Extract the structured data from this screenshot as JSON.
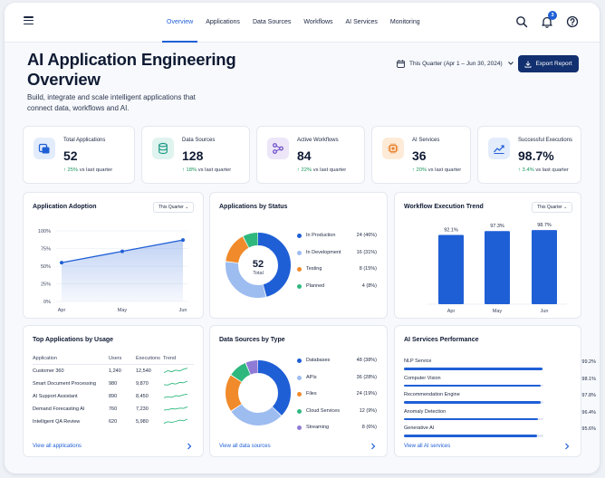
{
  "nav": {
    "tabs": [
      {
        "label": "Overview",
        "active": true
      },
      {
        "label": "Applications",
        "active": false
      },
      {
        "label": "Data Sources",
        "active": false
      },
      {
        "label": "Workflows",
        "active": false
      },
      {
        "label": "AI Services",
        "active": false
      },
      {
        "label": "Monitoring",
        "active": false
      }
    ],
    "notification_count": "3",
    "icons": [
      "menu-icon",
      "search-icon",
      "bell-icon",
      "help-icon"
    ]
  },
  "header": {
    "title": "AI Application Engineering Overview",
    "subtitle": "Build, integrate and scale intelligent applications that connect data, workflows and AI.",
    "date_range": "This Quarter (Apr 1 – Jun 30, 2024)",
    "export_label": "Export Report"
  },
  "kpis": [
    {
      "label": "Total Applications",
      "value": "52",
      "delta": "25%",
      "delta_suffix": "vs last quarter",
      "icon": "applications-icon",
      "icon_bg": "#e3ecfb",
      "icon_color": "#1f5fd6"
    },
    {
      "label": "Data Sources",
      "value": "128",
      "delta": "18%",
      "delta_suffix": "vs last quarter",
      "icon": "database-icon",
      "icon_bg": "#dff3ef",
      "icon_color": "#1e9a84"
    },
    {
      "label": "Active Workflows",
      "value": "84",
      "delta": "22%",
      "delta_suffix": "vs last quarter",
      "icon": "workflow-icon",
      "icon_bg": "#ece6f8",
      "icon_color": "#6b4bc8"
    },
    {
      "label": "AI Services",
      "value": "36",
      "delta": "20%",
      "delta_suffix": "vs last quarter",
      "icon": "chip-icon",
      "icon_bg": "#fdebd8",
      "icon_color": "#e8822d"
    },
    {
      "label": "Successful Executions",
      "value": "98.7%",
      "delta": "3.4%",
      "delta_suffix": "vs last quarter",
      "icon": "trend-icon",
      "icon_bg": "#e3ecfb",
      "icon_color": "#1f5fd6"
    }
  ],
  "adoption": {
    "title": "Application Adoption",
    "filter": "This Quarter"
  },
  "status": {
    "title": "Applications by Status",
    "center_value": "52",
    "center_label": "Total"
  },
  "trend": {
    "title": "Workflow Execution Trend",
    "filter": "This Quarter"
  },
  "top_apps": {
    "title": "Top Applications by Usage",
    "columns": [
      "Application",
      "Users",
      "Executions",
      "Trend"
    ],
    "rows": [
      {
        "app": "Customer 360",
        "users": "1,240",
        "executions": "12,540",
        "spark": [
          0.2,
          0.5,
          0.35,
          0.6,
          0.45,
          0.75,
          0.9
        ]
      },
      {
        "app": "Smart Document Processing",
        "users": "980",
        "executions": "9,870",
        "spark": [
          0.3,
          0.25,
          0.5,
          0.4,
          0.65,
          0.6,
          0.85
        ]
      },
      {
        "app": "AI Support Assistant",
        "users": "890",
        "executions": "8,450",
        "spark": [
          0.25,
          0.4,
          0.3,
          0.55,
          0.5,
          0.7,
          0.8
        ]
      },
      {
        "app": "Demand Forecasting AI",
        "users": "760",
        "executions": "7,230",
        "spark": [
          0.3,
          0.35,
          0.5,
          0.45,
          0.6,
          0.55,
          0.8
        ]
      },
      {
        "app": "Intelligent QA Review",
        "users": "620",
        "executions": "5,980",
        "spark": [
          0.2,
          0.45,
          0.35,
          0.5,
          0.7,
          0.6,
          0.85
        ]
      }
    ],
    "link": "View all applications"
  },
  "data_types": {
    "title": "Data Sources by Type",
    "link": "View all data sources"
  },
  "services": {
    "title": "AI Services Performance",
    "link": "View all AI services",
    "items": [
      {
        "name": "NLP Service",
        "value": "99.2%",
        "pct": 99.2
      },
      {
        "name": "Computer Vision",
        "value": "98.1%",
        "pct": 98.1
      },
      {
        "name": "Recommendation Engine",
        "value": "97.8%",
        "pct": 97.8
      },
      {
        "name": "Anomaly Detection",
        "value": "96.4%",
        "pct": 96.4
      },
      {
        "name": "Generative AI",
        "value": "95.6%",
        "pct": 95.6
      }
    ]
  },
  "chart_data": [
    {
      "type": "area",
      "title": "Application Adoption",
      "categories": [
        "Apr",
        "May",
        "Jun"
      ],
      "values": [
        55,
        71,
        87
      ],
      "ylim": [
        0,
        100
      ],
      "yticks": [
        "0%",
        "25%",
        "50%",
        "75%",
        "100%"
      ],
      "color": "#1f5fd6"
    },
    {
      "type": "pie",
      "title": "Applications by Status",
      "labels": [
        "In Production",
        "In Development",
        "Testing",
        "Planned"
      ],
      "values": [
        24,
        16,
        8,
        4
      ],
      "display": [
        "24 (46%)",
        "16 (31%)",
        "8 (15%)",
        "4 (8%)"
      ],
      "colors": [
        "#1f5fd6",
        "#9dbcf0",
        "#f08a2a",
        "#2fb87e"
      ]
    },
    {
      "type": "bar",
      "title": "Workflow Execution Trend",
      "categories": [
        "Apr",
        "May",
        "Jun"
      ],
      "values": [
        92.1,
        97.3,
        98.7
      ],
      "labels": [
        "92.1%",
        "97.3%",
        "98.7%"
      ],
      "ylim": [
        0,
        100
      ],
      "color": "#1f5fd6"
    },
    {
      "type": "pie",
      "title": "Data Sources by Type",
      "labels": [
        "Databases",
        "APIs",
        "Files",
        "Cloud Services",
        "Streaming"
      ],
      "values": [
        48,
        36,
        24,
        12,
        8
      ],
      "display": [
        "48 (38%)",
        "36 (28%)",
        "24 (19%)",
        "12 (9%)",
        "8 (6%)"
      ],
      "colors": [
        "#1f5fd6",
        "#9dbcf0",
        "#f08a2a",
        "#2fb87e",
        "#8f7bd6"
      ]
    }
  ]
}
